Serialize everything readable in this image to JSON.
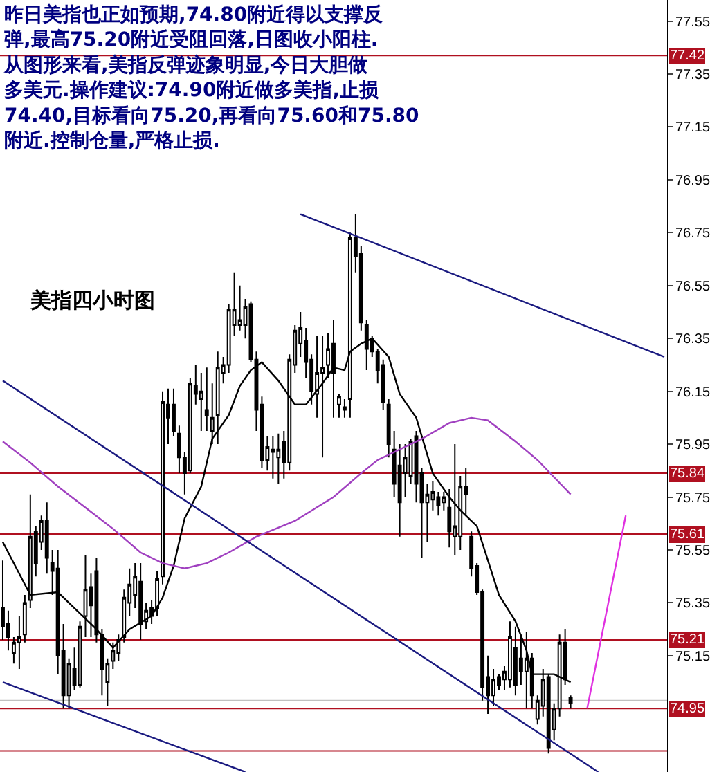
{
  "chart_data": {
    "type": "candlestick",
    "annotations": [
      "昨日美指也正如预期,74.80附近得以支撑反弹,最高75.20附近受阻回落,日图收小阳柱.从图形来看,美指反弹迹象明显,今日大胆做多美元.操作建议:74.90附近做多美指,止损74.40,目标看向75.20,再看向75.60和75.80附近.控制仓量,严格止损.",
      "美指四小时图"
    ],
    "categories": [
      null,
      null,
      null,
      null,
      null,
      null,
      null,
      null,
      null,
      null,
      null,
      null,
      null,
      null,
      null,
      null,
      null,
      null,
      null,
      null,
      null,
      null,
      null,
      null,
      null,
      null,
      null,
      null,
      null,
      null,
      null,
      null,
      null,
      null,
      null,
      null,
      null,
      null,
      null,
      null,
      null,
      null,
      null,
      null,
      null,
      null,
      null,
      null,
      null,
      null,
      null,
      null,
      null,
      null,
      null,
      null,
      null,
      null,
      null,
      null,
      null,
      null,
      null,
      null,
      null,
      null,
      null,
      null,
      null,
      null,
      null,
      null,
      null,
      null,
      null,
      null,
      null,
      null,
      null,
      null,
      null,
      null,
      null,
      null,
      null,
      null,
      null,
      null,
      null,
      null,
      null,
      null,
      null,
      null,
      null,
      null,
      null,
      null,
      null,
      null,
      null,
      null,
      null,
      null,
      null,
      null,
      null,
      null,
      null,
      null,
      null,
      null,
      null,
      null,
      null,
      null,
      null,
      null,
      null,
      null,
      null
    ],
    "ohlc": [
      [
        75.33,
        75.51,
        75.21,
        75.26
      ],
      [
        75.27,
        75.32,
        75.17,
        75.22
      ],
      [
        75.16,
        75.22,
        75.12,
        75.2
      ],
      [
        75.2,
        75.3,
        75.1,
        75.22
      ],
      [
        75.23,
        75.38,
        75.2,
        75.35
      ],
      [
        75.36,
        75.76,
        75.33,
        75.6
      ],
      [
        75.62,
        75.64,
        75.45,
        75.5
      ],
      [
        75.58,
        75.68,
        75.55,
        75.66
      ],
      [
        75.66,
        75.73,
        75.46,
        75.52
      ],
      [
        75.5,
        75.55,
        75.38,
        75.47
      ],
      [
        75.48,
        75.55,
        75.08,
        75.15
      ],
      [
        75.17,
        75.27,
        74.95,
        75.0
      ],
      [
        75.0,
        75.14,
        74.95,
        75.12
      ],
      [
        75.1,
        75.18,
        75.02,
        75.04
      ],
      [
        75.04,
        75.28,
        75.03,
        75.26
      ],
      [
        75.3,
        75.53,
        75.22,
        75.4
      ],
      [
        75.41,
        75.46,
        75.22,
        75.34
      ],
      [
        75.47,
        75.52,
        75.2,
        75.23
      ],
      [
        75.23,
        75.25,
        75.0,
        75.1
      ],
      [
        75.05,
        75.14,
        74.96,
        75.12
      ],
      [
        75.13,
        75.2,
        75.1,
        75.17
      ],
      [
        75.16,
        75.23,
        75.13,
        75.21
      ],
      [
        75.22,
        75.4,
        75.2,
        75.37
      ],
      [
        75.35,
        75.48,
        75.3,
        75.42
      ],
      [
        75.38,
        75.5,
        75.33,
        75.45
      ],
      [
        75.43,
        75.5,
        75.21,
        75.27
      ],
      [
        75.28,
        75.35,
        75.25,
        75.32
      ],
      [
        75.33,
        75.36,
        75.27,
        75.3
      ],
      [
        75.33,
        75.47,
        75.3,
        75.44
      ],
      [
        75.45,
        76.15,
        75.42,
        76.11
      ],
      [
        76.1,
        76.16,
        75.95,
        76.05
      ],
      [
        76.1,
        76.16,
        75.98,
        76.0
      ],
      [
        75.99,
        76.02,
        75.84,
        75.9
      ],
      [
        75.9,
        75.92,
        75.76,
        75.84
      ],
      [
        75.85,
        76.2,
        75.84,
        76.18
      ],
      [
        76.17,
        76.25,
        76.1,
        76.14
      ],
      [
        76.12,
        76.22,
        76.0,
        76.15
      ],
      [
        76.08,
        76.24,
        76.0,
        76.06
      ],
      [
        76.0,
        76.18,
        75.95,
        76.05
      ],
      [
        76.06,
        76.3,
        75.95,
        76.24
      ],
      [
        76.22,
        76.28,
        76.18,
        76.25
      ],
      [
        76.25,
        76.48,
        76.22,
        76.46
      ],
      [
        76.4,
        76.6,
        76.36,
        76.46
      ],
      [
        76.4,
        76.55,
        76.38,
        76.42
      ],
      [
        76.4,
        76.5,
        76.35,
        76.47
      ],
      [
        76.48,
        76.49,
        76.26,
        76.27
      ],
      [
        76.27,
        76.3,
        76.0,
        76.08
      ],
      [
        76.1,
        76.13,
        75.86,
        75.89
      ],
      [
        75.89,
        75.98,
        75.85,
        75.94
      ],
      [
        75.93,
        75.98,
        75.82,
        75.92
      ],
      [
        75.9,
        75.99,
        75.8,
        75.93
      ],
      [
        75.96,
        76.0,
        75.82,
        75.88
      ],
      [
        75.88,
        76.29,
        75.85,
        76.27
      ],
      [
        76.25,
        76.4,
        76.22,
        76.38
      ],
      [
        76.33,
        76.45,
        76.28,
        76.39
      ],
      [
        76.34,
        76.39,
        76.2,
        76.26
      ],
      [
        76.27,
        76.29,
        76.1,
        76.15
      ],
      [
        76.14,
        76.36,
        76.05,
        76.22
      ],
      [
        76.22,
        76.36,
        75.9,
        76.24
      ],
      [
        76.25,
        76.37,
        76.2,
        76.31
      ],
      [
        76.33,
        76.42,
        76.05,
        76.22
      ],
      [
        76.1,
        76.14,
        76.05,
        76.13
      ],
      [
        76.08,
        76.12,
        76.05,
        76.09
      ],
      [
        76.12,
        76.75,
        76.05,
        76.73
      ],
      [
        76.73,
        76.82,
        76.6,
        76.66
      ],
      [
        76.67,
        76.7,
        76.38,
        76.41
      ],
      [
        76.4,
        76.42,
        76.23,
        76.31
      ],
      [
        76.35,
        76.36,
        76.28,
        76.3
      ],
      [
        76.3,
        76.31,
        76.18,
        76.23
      ],
      [
        76.25,
        76.27,
        76.08,
        76.11
      ],
      [
        76.1,
        76.12,
        75.9,
        75.95
      ],
      [
        75.93,
        76.0,
        75.75,
        75.8
      ],
      [
        75.87,
        75.95,
        75.6,
        75.73
      ],
      [
        75.84,
        75.95,
        75.75,
        75.9
      ],
      [
        75.83,
        75.97,
        75.8,
        75.96
      ],
      [
        75.98,
        76.0,
        75.73,
        75.8
      ],
      [
        75.84,
        75.86,
        75.52,
        75.73
      ],
      [
        75.73,
        75.8,
        75.58,
        75.76
      ],
      [
        75.74,
        75.81,
        75.7,
        75.77
      ],
      [
        75.75,
        75.77,
        75.68,
        75.72
      ],
      [
        75.73,
        75.77,
        75.7,
        75.75
      ],
      [
        75.71,
        75.78,
        75.56,
        75.62
      ],
      [
        75.6,
        75.95,
        75.53,
        75.64
      ],
      [
        75.6,
        75.83,
        75.55,
        75.79
      ],
      [
        75.79,
        75.86,
        75.68,
        75.76
      ],
      [
        75.6,
        75.62,
        75.45,
        75.48
      ],
      [
        75.49,
        75.5,
        75.38,
        75.39
      ],
      [
        75.39,
        75.4,
        74.98,
        75.03
      ],
      [
        75.07,
        75.15,
        74.93,
        75.0
      ],
      [
        75.0,
        75.1,
        74.96,
        75.06
      ],
      [
        75.07,
        75.08,
        75.02,
        75.04
      ],
      [
        75.06,
        75.11,
        75.02,
        75.09
      ],
      [
        75.06,
        75.28,
        75.03,
        75.22
      ],
      [
        75.18,
        75.26,
        75.0,
        75.04
      ],
      [
        75.14,
        75.23,
        75.04,
        75.09
      ],
      [
        75.09,
        75.24,
        74.95,
        75.14
      ],
      [
        75.14,
        75.16,
        74.95,
        75.0
      ],
      [
        74.91,
        75.0,
        74.89,
        74.98
      ],
      [
        74.96,
        75.1,
        74.92,
        75.06
      ],
      [
        75.07,
        75.08,
        74.78,
        74.8
      ],
      [
        74.87,
        74.97,
        74.83,
        74.95
      ],
      [
        74.95,
        75.23,
        74.92,
        75.2
      ],
      [
        75.2,
        75.25,
        75.04,
        75.06
      ],
      [
        74.99,
        75.0,
        74.95,
        74.97
      ],
      null,
      null,
      null,
      null,
      null,
      null,
      null,
      null,
      null,
      null,
      null,
      null,
      null,
      null,
      null,
      null,
      null
    ],
    "series": [
      {
        "type": "line",
        "color": "#000000",
        "values": [
          75.58,
          null,
          null,
          null,
          null,
          75.38,
          null,
          null,
          null,
          null,
          75.39,
          null,
          null,
          75.33,
          null,
          null,
          null,
          75.25,
          null,
          null,
          75.18,
          null,
          null,
          75.25,
          null,
          null,
          null,
          75.3,
          null,
          75.37,
          null,
          75.49,
          null,
          75.67,
          null,
          null,
          75.79,
          null,
          75.97,
          null,
          null,
          76.06,
          null,
          76.17,
          null,
          76.23,
          null,
          76.26,
          null,
          null,
          76.19,
          null,
          null,
          76.1,
          null,
          76.1,
          null,
          null,
          76.18,
          null,
          76.24,
          null,
          76.23,
          76.3,
          null,
          76.33,
          null,
          76.35,
          null,
          null,
          76.28,
          null,
          76.14,
          null,
          null,
          76.05,
          null,
          null,
          75.84,
          null,
          null,
          75.75,
          null,
          75.7,
          null,
          null,
          75.64,
          null,
          75.51,
          null,
          75.38,
          null,
          null,
          75.28,
          null,
          75.17,
          75.08,
          null,
          null,
          null,
          75.08,
          null,
          null,
          75.05,
          null,
          null,
          null,
          null,
          null,
          null,
          null,
          null,
          null,
          null,
          null,
          null,
          null,
          null,
          null,
          null,
          null
        ]
      },
      {
        "type": "line",
        "color": "#a040c0",
        "values": [
          75.96,
          null,
          null,
          null,
          null,
          75.88,
          null,
          null,
          null,
          null,
          75.79,
          null,
          null,
          null,
          null,
          75.71,
          null,
          null,
          null,
          null,
          75.63,
          null,
          null,
          null,
          null,
          75.54,
          null,
          null,
          null,
          75.5,
          null,
          null,
          null,
          75.48,
          null,
          null,
          null,
          75.5,
          null,
          null,
          null,
          75.54,
          null,
          null,
          null,
          null,
          75.6,
          null,
          null,
          null,
          null,
          null,
          null,
          75.66,
          null,
          null,
          null,
          null,
          null,
          null,
          75.75,
          null,
          null,
          null,
          null,
          75.84,
          null,
          null,
          75.89,
          null,
          null,
          null,
          null,
          null,
          null,
          null,
          75.97,
          null,
          null,
          null,
          null,
          76.03,
          null,
          null,
          null,
          76.05,
          null,
          null,
          76.04,
          null,
          null,
          null,
          null,
          75.96,
          null,
          null,
          null,
          75.89,
          null,
          null,
          null,
          null,
          null,
          75.76,
          null,
          null,
          null,
          null,
          null,
          null,
          null,
          null,
          null,
          null,
          null,
          null,
          null,
          null,
          null,
          null,
          null
        ]
      },
      {
        "type": "line",
        "color": "#1a1a80",
        "values": [
          null,
          null,
          null,
          null,
          null,
          null,
          null,
          null,
          null,
          null,
          null,
          null,
          null,
          null,
          null,
          null,
          null,
          null,
          null,
          null,
          null,
          null,
          null,
          null,
          null,
          null,
          null,
          null,
          null,
          null,
          null,
          null,
          null,
          null,
          null,
          null,
          null,
          null,
          null,
          null,
          null,
          null,
          null,
          null,
          null,
          null,
          null,
          null,
          null,
          null,
          null,
          null,
          null,
          null,
          76.82,
          null,
          null,
          null,
          null,
          null,
          null,
          null,
          null,
          null,
          null,
          null,
          null,
          null,
          null,
          null,
          null,
          null,
          null,
          null,
          null,
          null,
          null,
          null,
          null,
          null,
          null,
          null,
          null,
          null,
          null,
          null,
          null,
          null,
          null,
          null,
          null,
          null,
          null,
          null,
          null,
          null,
          null,
          null,
          null,
          null,
          null,
          null,
          null,
          null,
          null,
          null,
          null,
          null,
          null,
          null,
          null,
          null,
          null,
          null,
          null,
          null,
          null,
          null,
          null,
          null,
          76.28
        ]
      },
      {
        "type": "line",
        "color": "#1a1a80",
        "values": [
          76.19,
          null,
          null,
          null,
          null,
          null,
          null,
          null,
          null,
          null,
          null,
          null,
          null,
          null,
          null,
          null,
          null,
          null,
          null,
          null,
          null,
          null,
          null,
          null,
          null,
          null,
          null,
          null,
          null,
          null,
          null,
          null,
          null,
          null,
          null,
          null,
          null,
          null,
          null,
          null,
          null,
          null,
          null,
          null,
          null,
          null,
          null,
          null,
          null,
          null,
          null,
          null,
          null,
          null,
          null,
          null,
          null,
          null,
          null,
          null,
          null,
          null,
          null,
          null,
          null,
          null,
          null,
          null,
          null,
          null,
          null,
          null,
          null,
          null,
          null,
          null,
          null,
          null,
          null,
          null,
          null,
          null,
          null,
          null,
          null,
          null,
          null,
          null,
          null,
          null,
          null,
          null,
          null,
          null,
          null,
          null,
          null,
          null,
          null,
          null,
          null,
          null,
          null,
          null,
          null,
          null,
          null,
          null,
          74.71,
          null,
          null,
          null,
          null,
          null,
          null,
          null,
          null,
          null,
          null,
          null,
          null
        ]
      },
      {
        "type": "line",
        "color": "#1a1a80",
        "values": [
          75.05,
          null,
          null,
          null,
          null,
          null,
          null,
          null,
          null,
          null,
          null,
          null,
          null,
          null,
          null,
          null,
          null,
          null,
          null,
          null,
          null,
          null,
          null,
          null,
          null,
          null,
          null,
          null,
          null,
          null,
          null,
          null,
          null,
          null,
          null,
          null,
          null,
          null,
          null,
          null,
          null,
          null,
          null,
          null,
          74.71,
          null,
          null,
          null,
          null,
          null,
          null,
          null,
          null,
          null,
          null,
          null,
          null,
          null,
          null,
          null,
          null,
          null,
          null,
          null,
          null,
          null,
          null,
          null,
          null,
          null,
          null,
          null,
          null,
          null,
          null,
          null,
          null,
          null,
          null,
          null,
          null,
          null,
          null,
          null,
          null,
          null,
          null,
          null,
          null,
          null,
          null,
          null,
          null,
          null,
          null,
          null,
          null,
          null,
          null,
          null,
          null,
          null,
          null,
          null,
          null,
          null,
          null,
          null,
          null,
          null,
          null,
          null,
          null,
          null,
          null,
          null,
          null,
          null,
          null,
          null,
          null
        ]
      },
      {
        "type": "line",
        "color": "#e030e0",
        "values": [
          null,
          null,
          null,
          null,
          null,
          null,
          null,
          null,
          null,
          null,
          null,
          null,
          null,
          null,
          null,
          null,
          null,
          null,
          null,
          null,
          null,
          null,
          null,
          null,
          null,
          null,
          null,
          null,
          null,
          null,
          null,
          null,
          null,
          null,
          null,
          null,
          null,
          null,
          null,
          null,
          null,
          null,
          null,
          null,
          null,
          null,
          null,
          null,
          null,
          null,
          null,
          null,
          null,
          null,
          null,
          null,
          null,
          null,
          null,
          null,
          null,
          null,
          null,
          null,
          null,
          null,
          null,
          null,
          null,
          null,
          null,
          null,
          null,
          null,
          null,
          null,
          null,
          null,
          null,
          null,
          null,
          null,
          null,
          null,
          null,
          null,
          null,
          null,
          null,
          null,
          null,
          null,
          null,
          null,
          null,
          null,
          null,
          null,
          null,
          null,
          null,
          null,
          null,
          null,
          null,
          null,
          74.95,
          null,
          null,
          null,
          null,
          null,
          null,
          75.68,
          null,
          null,
          null,
          null,
          null,
          null,
          null
        ]
      }
    ],
    "ref_lines": [
      {
        "axis": "y",
        "value": 77.42,
        "label": "77.42",
        "color": "#b01020"
      },
      {
        "axis": "y",
        "value": 75.84,
        "label": "75.84",
        "color": "#b01020"
      },
      {
        "axis": "y",
        "value": 75.61,
        "label": "75.61",
        "color": "#b01020"
      },
      {
        "axis": "y",
        "value": 75.21,
        "label": "75.21",
        "color": "#b01020"
      },
      {
        "axis": "y",
        "value": 74.98,
        "color": "#c0c0c0"
      },
      {
        "axis": "y",
        "value": 74.95,
        "label": "74.95",
        "color": "#b01020"
      },
      {
        "axis": "y",
        "value": 74.79,
        "color": "#b01020"
      }
    ],
    "ylim": [
      74.71,
      77.63
    ],
    "yticks": [
      75.15,
      75.35,
      75.55,
      75.75,
      75.95,
      76.15,
      76.35,
      76.55,
      76.75,
      76.95,
      77.15,
      77.35,
      77.55
    ],
    "tick_labels": "y",
    "grid": false
  }
}
